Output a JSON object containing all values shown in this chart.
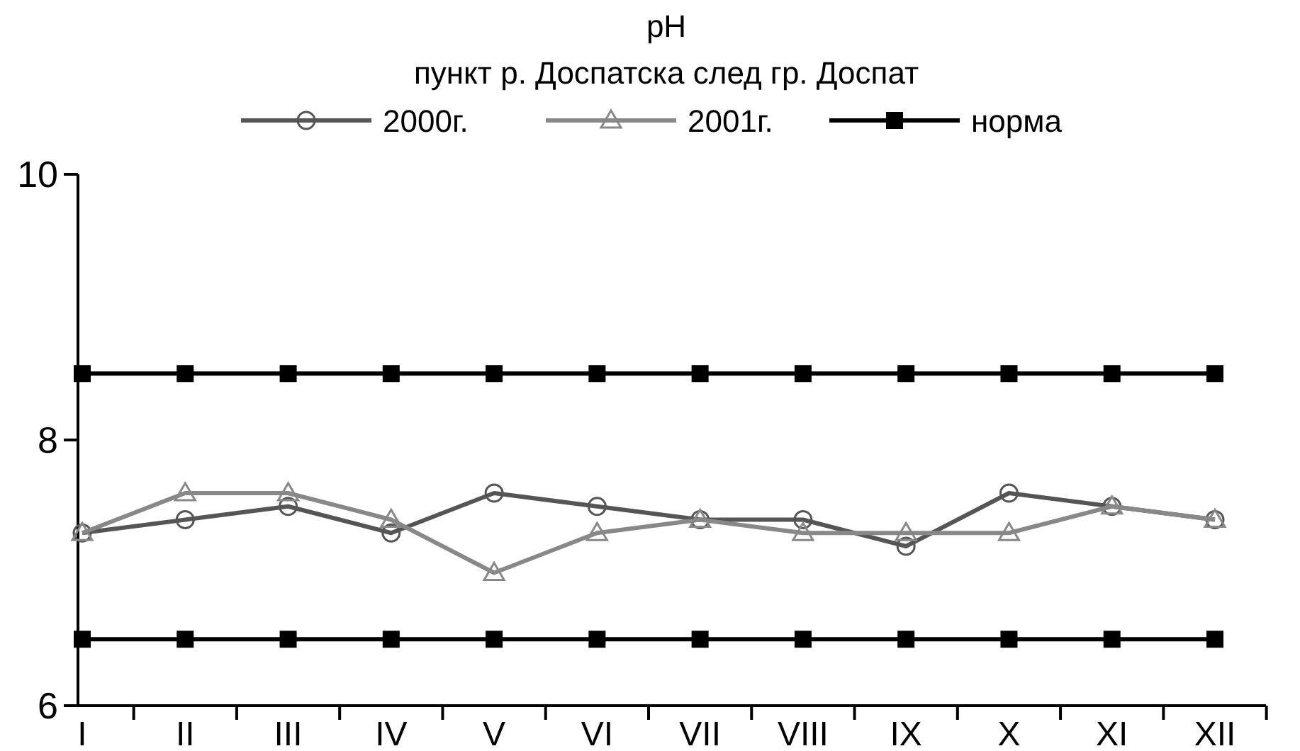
{
  "chart_data": {
    "type": "line",
    "title": "pH",
    "subtitle": "пункт р. Доспатска след гр. Доспат",
    "categories": [
      "I",
      "II",
      "III",
      "IV",
      "V",
      "VI",
      "VII",
      "VIII",
      "IX",
      "X",
      "XI",
      "XII"
    ],
    "series": [
      {
        "name": "2000г.",
        "color": "#555555",
        "marker": "circle",
        "values": [
          7.3,
          7.4,
          7.5,
          7.3,
          7.6,
          7.5,
          7.4,
          7.4,
          7.2,
          7.6,
          7.5,
          7.4
        ]
      },
      {
        "name": "2001г.",
        "color": "#888888",
        "marker": "triangle",
        "values": [
          7.3,
          7.6,
          7.6,
          7.4,
          7.0,
          7.3,
          7.4,
          7.3,
          7.3,
          7.3,
          7.5,
          7.4
        ]
      },
      {
        "name": "норма",
        "color": "#000000",
        "marker": "square",
        "values": [
          8.5,
          8.5,
          8.5,
          8.5,
          8.5,
          8.5,
          8.5,
          8.5,
          8.5,
          8.5,
          8.5,
          8.5
        ]
      },
      {
        "color": "#000000",
        "marker": "square",
        "values": [
          6.5,
          6.5,
          6.5,
          6.5,
          6.5,
          6.5,
          6.5,
          6.5,
          6.5,
          6.5,
          6.5,
          6.5
        ]
      }
    ],
    "ylim": [
      6,
      10
    ],
    "yticks": [
      6,
      8,
      10
    ],
    "grid": false,
    "legend": "top"
  }
}
